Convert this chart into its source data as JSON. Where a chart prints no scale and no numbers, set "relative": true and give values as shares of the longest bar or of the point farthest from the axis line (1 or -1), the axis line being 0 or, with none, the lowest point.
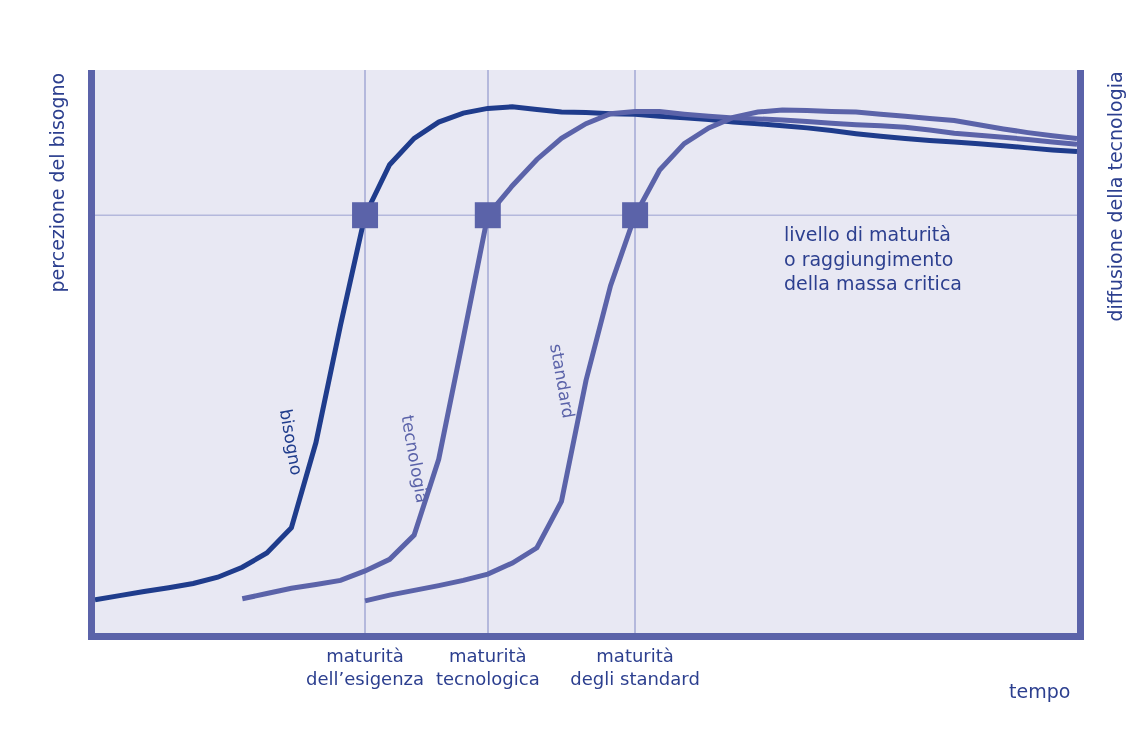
{
  "chart_data": {
    "type": "line",
    "relative": true,
    "xlabel": "tempo",
    "ylabel": "percezione del bisogno",
    "y2label": "diffusione della tecnologia",
    "categories": [
      null,
      null,
      null,
      null,
      null,
      null,
      null,
      null,
      null,
      null,
      null,
      "maturità\ndell’esigenza",
      null,
      null,
      null,
      null,
      "maturità\ntecnologica",
      null,
      null,
      null,
      null,
      null,
      "maturità\ndegli standard",
      null,
      null,
      null,
      null,
      null,
      null,
      null,
      null,
      null,
      null,
      null,
      null,
      null,
      null,
      null,
      null,
      null,
      null
    ],
    "tick_labels": "x",
    "grid": "x",
    "legend": false,
    "line_style": "solid",
    "ref_lines": [
      {
        "axis": "y",
        "value": 0.794,
        "label": "livello di maturità\no raggiungimento\ndella massa critica",
        "color": "#b4b8dc"
      }
    ],
    "series": [
      {
        "name": "bisogno",
        "color": "#1f3c8c",
        "values": [
          0.063,
          0.071,
          0.079,
          0.086,
          0.094,
          0.106,
          0.125,
          0.152,
          0.2,
          0.362,
          0.585,
          0.794,
          0.89,
          0.94,
          0.971,
          0.988,
          0.997,
          1.0,
          0.995,
          0.99,
          0.989,
          0.987,
          0.986,
          0.982,
          0.979,
          0.976,
          0.971,
          0.968,
          0.964,
          0.96,
          0.955,
          0.949,
          0.944,
          0.94,
          0.936,
          0.933,
          0.93,
          0.926,
          0.922,
          0.918,
          0.915
        ]
      },
      {
        "name": "tecnologia",
        "color": "#5b63a9",
        "values": [
          null,
          null,
          null,
          null,
          null,
          null,
          0.065,
          0.075,
          0.085,
          0.092,
          0.1,
          0.118,
          0.14,
          0.186,
          0.33,
          0.56,
          0.794,
          0.85,
          0.9,
          0.94,
          0.968,
          0.987,
          0.991,
          0.991,
          0.986,
          0.982,
          0.979,
          0.977,
          0.975,
          0.972,
          0.969,
          0.966,
          0.964,
          0.961,
          0.956,
          0.95,
          0.946,
          0.942,
          0.938,
          0.933,
          0.929
        ]
      },
      {
        "name": "standard",
        "color": "#5b63a9",
        "values": [
          null,
          null,
          null,
          null,
          null,
          null,
          null,
          null,
          null,
          null,
          null,
          0.061,
          0.072,
          0.081,
          0.09,
          0.1,
          0.112,
          0.133,
          0.162,
          0.25,
          0.48,
          0.66,
          0.794,
          0.88,
          0.93,
          0.96,
          0.98,
          0.99,
          0.994,
          0.993,
          0.991,
          0.99,
          0.986,
          0.982,
          0.978,
          0.974,
          0.966,
          0.958,
          0.951,
          0.945,
          0.94
        ]
      }
    ]
  }
}
